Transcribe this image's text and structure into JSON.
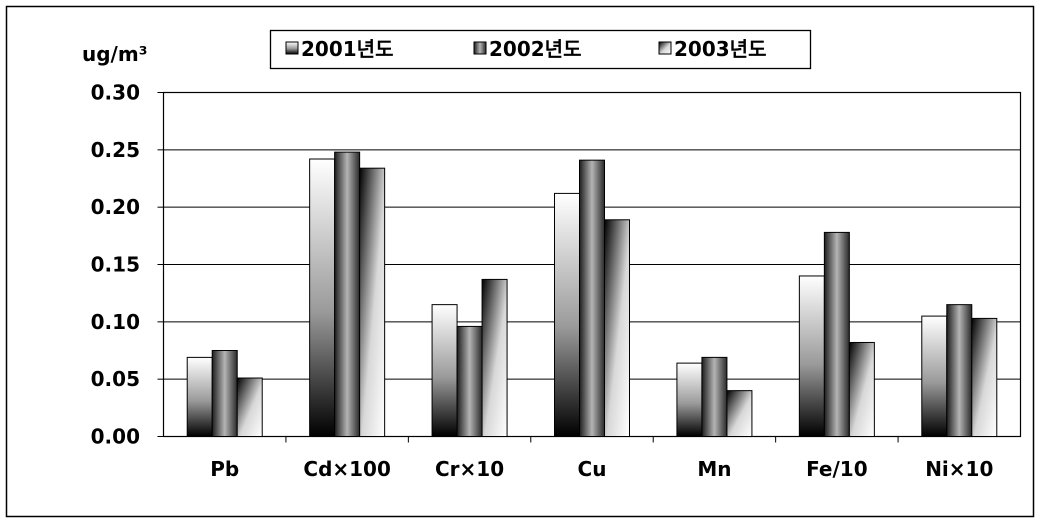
{
  "chart_data": {
    "type": "bar",
    "ylabel": "ug/m³",
    "ylim": [
      0,
      0.3
    ],
    "yticks": [
      "0.00",
      "0.05",
      "0.10",
      "0.15",
      "0.20",
      "0.25",
      "0.30"
    ],
    "categories": [
      "Pb",
      "Cd×100",
      "Cr×10",
      "Cu",
      "Mn",
      "Fe/10",
      "Ni×10"
    ],
    "series": [
      {
        "name": "2001년도",
        "values": [
          0.069,
          0.242,
          0.115,
          0.212,
          0.064,
          0.14,
          0.105
        ]
      },
      {
        "name": "2002년도",
        "values": [
          0.075,
          0.248,
          0.096,
          0.241,
          0.069,
          0.178,
          0.115
        ]
      },
      {
        "name": "2003년도",
        "values": [
          0.051,
          0.234,
          0.137,
          0.189,
          0.04,
          0.082,
          0.103
        ]
      }
    ],
    "grid": true,
    "legend_position": "top"
  }
}
